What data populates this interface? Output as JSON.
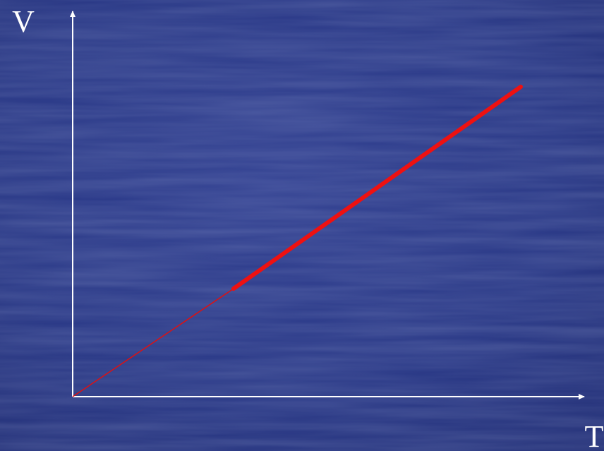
{
  "axes": {
    "y_label": "V",
    "x_label": "T"
  }
}
